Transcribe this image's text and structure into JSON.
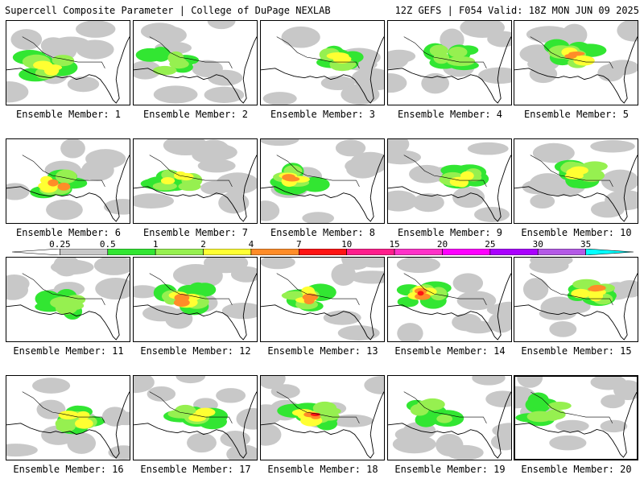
{
  "header": {
    "left_title": "Supercell Composite Parameter | College of DuPage NEXLAB",
    "right_title": "12Z GEFS | F054 Valid: 18Z MON JUN 09 2025"
  },
  "colorbar": {
    "ticks": [
      "0.25",
      "0.5",
      "1",
      "2",
      "4",
      "7",
      "10",
      "15",
      "20",
      "25",
      "30",
      "35"
    ],
    "colors": [
      "#c8c8c8",
      "#32e632",
      "#96f050",
      "#ffff32",
      "#ff8c28",
      "#ff1414",
      "#ff1e8c",
      "#ff32c8",
      "#ff00ff",
      "#aa00ff",
      "#b45ae6",
      "#00ffff"
    ]
  },
  "members": [
    {
      "label": "Ensemble Member: 1",
      "peak": 4
    },
    {
      "label": "Ensemble Member: 2",
      "peak": 3
    },
    {
      "label": "Ensemble Member: 3",
      "peak": 4
    },
    {
      "label": "Ensemble Member: 4",
      "peak": 3
    },
    {
      "label": "Ensemble Member: 5",
      "peak": 5
    },
    {
      "label": "Ensemble Member: 6",
      "peak": 5
    },
    {
      "label": "Ensemble Member: 7",
      "peak": 4
    },
    {
      "label": "Ensemble Member: 8",
      "peak": 5
    },
    {
      "label": "Ensemble Member: 9",
      "peak": 4
    },
    {
      "label": "Ensemble Member: 10",
      "peak": 4
    },
    {
      "label": "Ensemble Member: 11",
      "peak": 3
    },
    {
      "label": "Ensemble Member: 12",
      "peak": 5
    },
    {
      "label": "Ensemble Member: 13",
      "peak": 5
    },
    {
      "label": "Ensemble Member: 14",
      "peak": 6
    },
    {
      "label": "Ensemble Member: 15",
      "peak": 5
    },
    {
      "label": "Ensemble Member: 16",
      "peak": 4
    },
    {
      "label": "Ensemble Member: 17",
      "peak": 4
    },
    {
      "label": "Ensemble Member: 18",
      "peak": 6
    },
    {
      "label": "Ensemble Member: 19",
      "peak": 3
    },
    {
      "label": "Ensemble Member: 20",
      "peak": 3
    }
  ]
}
